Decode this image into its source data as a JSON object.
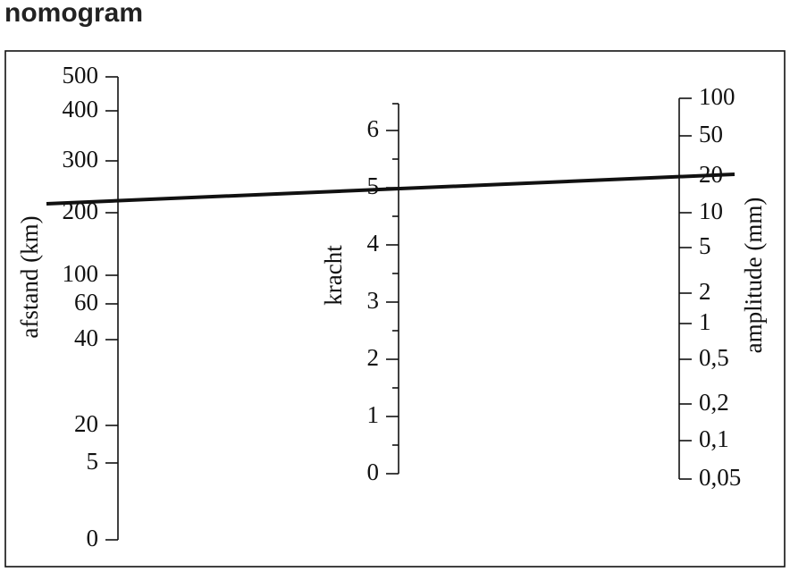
{
  "title": "nomogram",
  "scales": [
    {
      "label": "afstand (km)",
      "ticks": [
        "500",
        "400",
        "300",
        "200",
        "100",
        "60",
        "40",
        "20",
        "5",
        "0"
      ]
    },
    {
      "label": "kracht",
      "ticks": [
        "6",
        "5",
        "4",
        "3",
        "2",
        "1",
        "0"
      ]
    },
    {
      "label": "amplitude (mm)",
      "ticks": [
        "100",
        "50",
        "20",
        "10",
        "5",
        "2",
        "1",
        "0,5",
        "0,2",
        "0,1",
        "0,05"
      ]
    }
  ]
}
